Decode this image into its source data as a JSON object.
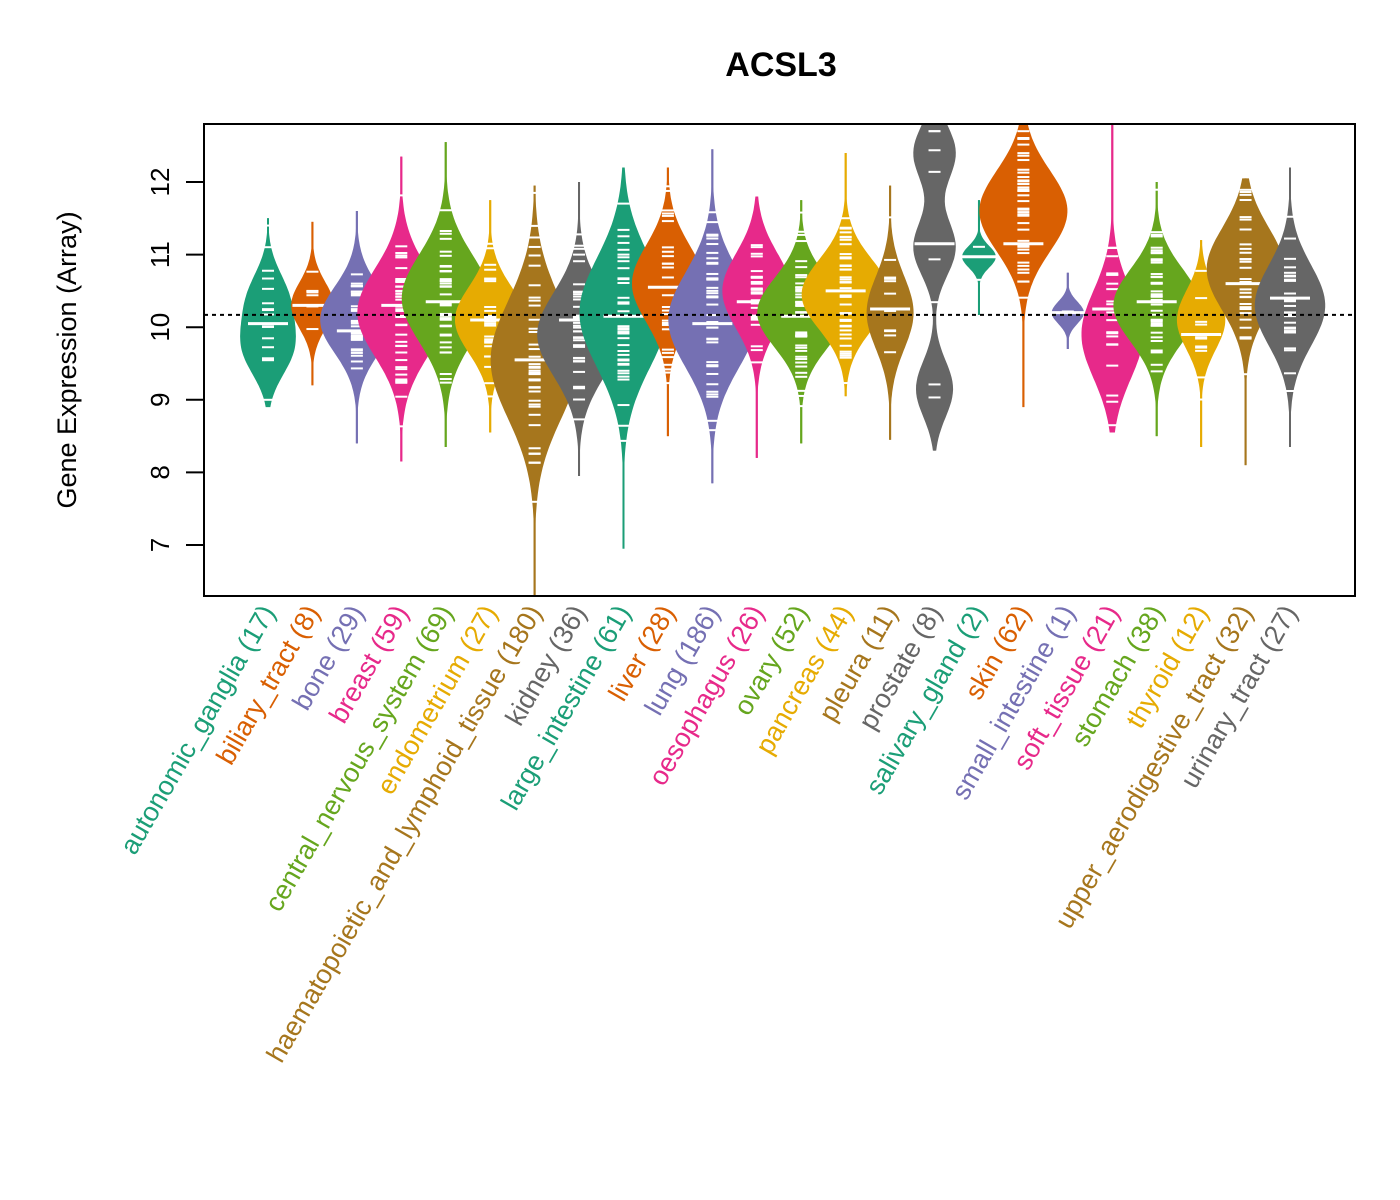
{
  "chart_data": {
    "type": "violin",
    "title": "ACSL3",
    "xlabel": "",
    "ylabel": "Gene Expression (Array)",
    "ylim": [
      6.3,
      12.8
    ],
    "yticks": [
      7,
      8,
      9,
      10,
      11,
      12
    ],
    "reference_line": 10.17,
    "grid": false,
    "legend": "none",
    "categories": [
      {
        "name": "autonomic_ganglia",
        "n": 17,
        "color": "#1B9E77",
        "min": 8.9,
        "max": 11.5,
        "median": 10.05,
        "modes": [
          [
            10.4,
            0.8
          ],
          [
            9.7,
            1.0
          ]
        ]
      },
      {
        "name": "biliary_tract",
        "n": 8,
        "color": "#D95F02",
        "min": 9.2,
        "max": 11.45,
        "median": 10.3,
        "modes": [
          [
            10.3,
            1.0
          ]
        ]
      },
      {
        "name": "bone",
        "n": 29,
        "color": "#7570B3",
        "min": 8.4,
        "max": 11.6,
        "median": 9.95,
        "modes": [
          [
            10.1,
            0.75
          ]
        ]
      },
      {
        "name": "breast",
        "n": 59,
        "color": "#E7298A",
        "min": 8.15,
        "max": 12.35,
        "median": 10.3,
        "modes": [
          [
            10.2,
            0.75
          ]
        ]
      },
      {
        "name": "central_nervous_system",
        "n": 69,
        "color": "#66A61E",
        "min": 8.35,
        "max": 12.55,
        "median": 10.35,
        "modes": [
          [
            10.4,
            0.8
          ]
        ]
      },
      {
        "name": "endometrium",
        "n": 27,
        "color": "#E6AB02",
        "min": 8.55,
        "max": 11.75,
        "median": 10.1,
        "modes": [
          [
            10.1,
            0.85
          ]
        ]
      },
      {
        "name": "haematopoietic_and_lymphoid_tissue",
        "n": 180,
        "color": "#A6761D",
        "min": 6.3,
        "max": 11.95,
        "median": 9.55,
        "modes": [
          [
            9.55,
            0.8
          ]
        ]
      },
      {
        "name": "kidney",
        "n": 36,
        "color": "#666666",
        "min": 7.95,
        "max": 12.0,
        "median": 10.1,
        "modes": [
          [
            9.9,
            0.7
          ]
        ]
      },
      {
        "name": "large_intestine",
        "n": 61,
        "color": "#1B9E77",
        "min": 6.95,
        "max": 12.2,
        "median": 10.15,
        "modes": [
          [
            10.2,
            0.95
          ]
        ]
      },
      {
        "name": "liver",
        "n": 28,
        "color": "#D95F02",
        "min": 8.5,
        "max": 12.2,
        "median": 10.55,
        "modes": [
          [
            10.6,
            1.1
          ]
        ]
      },
      {
        "name": "lung",
        "n": 186,
        "color": "#7570B3",
        "min": 7.85,
        "max": 12.45,
        "median": 10.05,
        "modes": [
          [
            10.1,
            0.75
          ]
        ]
      },
      {
        "name": "oesophagus",
        "n": 26,
        "color": "#E7298A",
        "min": 8.2,
        "max": 11.8,
        "median": 10.35,
        "modes": [
          [
            10.5,
            1.2
          ]
        ]
      },
      {
        "name": "ovary",
        "n": 52,
        "color": "#66A61E",
        "min": 8.4,
        "max": 11.75,
        "median": 10.15,
        "modes": [
          [
            10.2,
            0.95
          ]
        ]
      },
      {
        "name": "pancreas",
        "n": 44,
        "color": "#E6AB02",
        "min": 9.05,
        "max": 12.4,
        "median": 10.5,
        "modes": [
          [
            10.45,
            0.9
          ]
        ]
      },
      {
        "name": "pleura",
        "n": 11,
        "color": "#A6761D",
        "min": 8.45,
        "max": 11.95,
        "median": 10.25,
        "modes": [
          [
            10.2,
            0.65
          ]
        ]
      },
      {
        "name": "prostate",
        "n": 8,
        "color": "#666666",
        "min": 8.3,
        "max": 12.8,
        "median": 11.15,
        "modes": [
          [
            12.4,
            0.4
          ],
          [
            11.1,
            0.4
          ],
          [
            9.15,
            0.35
          ]
        ]
      },
      {
        "name": "salivary_gland",
        "n": 2,
        "color": "#1B9E77",
        "min": 10.17,
        "max": 11.75,
        "median": 10.97,
        "modes": [
          [
            10.97,
            0.25
          ]
        ]
      },
      {
        "name": "skin",
        "n": 62,
        "color": "#D95F02",
        "min": 8.9,
        "max": 12.8,
        "median": 11.15,
        "modes": [
          [
            11.6,
            0.7
          ]
        ]
      },
      {
        "name": "small_intestine",
        "n": 1,
        "color": "#7570B3",
        "min": 9.7,
        "max": 10.75,
        "median": 10.2,
        "modes": [
          [
            10.2,
            0.2
          ]
        ]
      },
      {
        "name": "soft_tissue",
        "n": 21,
        "color": "#E7298A",
        "min": 8.55,
        "max": 12.8,
        "median": 10.25,
        "modes": [
          [
            9.9,
            0.75
          ]
        ]
      },
      {
        "name": "stomach",
        "n": 38,
        "color": "#66A61E",
        "min": 8.5,
        "max": 12.0,
        "median": 10.35,
        "modes": [
          [
            10.3,
            0.75
          ]
        ]
      },
      {
        "name": "thyroid",
        "n": 12,
        "color": "#E6AB02",
        "min": 8.35,
        "max": 11.2,
        "median": 9.9,
        "modes": [
          [
            10.1,
            0.85
          ]
        ]
      },
      {
        "name": "upper_aerodigestive_tract",
        "n": 32,
        "color": "#A6761D",
        "min": 8.1,
        "max": 12.05,
        "median": 10.6,
        "modes": [
          [
            10.8,
            1.0
          ]
        ]
      },
      {
        "name": "urinary_tract",
        "n": 27,
        "color": "#666666",
        "min": 8.35,
        "max": 12.2,
        "median": 10.4,
        "modes": [
          [
            10.3,
            0.8
          ]
        ]
      }
    ]
  }
}
